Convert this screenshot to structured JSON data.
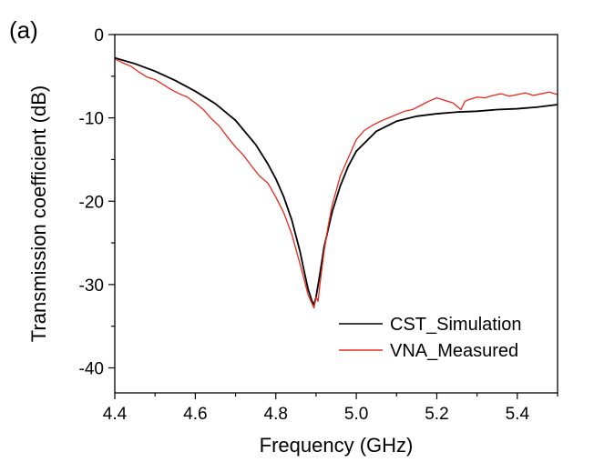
{
  "panel_label": "(a)",
  "chart_data": {
    "type": "line",
    "title": "",
    "xlabel": "Frequency (GHz)",
    "ylabel": "Transmission coefficient (dB)",
    "xlim": [
      4.4,
      5.5
    ],
    "ylim": [
      -43,
      0
    ],
    "xticks": [
      4.4,
      4.6,
      4.8,
      5.0,
      5.2,
      5.4
    ],
    "xtick_labels": [
      "4.4",
      "4.6",
      "4.8",
      "5.0",
      "5.2",
      "5.4"
    ],
    "yticks": [
      0,
      -10,
      -20,
      -30,
      -40
    ],
    "ytick_labels": [
      "0",
      "-10",
      "-20",
      "-30",
      "-40"
    ],
    "grid": false,
    "legend_position": "bottom-right",
    "series": [
      {
        "name": "CST_Simulation",
        "color": "#000000",
        "x": [
          4.4,
          4.45,
          4.5,
          4.55,
          4.6,
          4.65,
          4.7,
          4.75,
          4.78,
          4.8,
          4.82,
          4.84,
          4.86,
          4.87,
          4.88,
          4.89,
          4.895,
          4.9,
          4.91,
          4.92,
          4.94,
          4.96,
          4.98,
          5.0,
          5.05,
          5.1,
          5.15,
          5.2,
          5.25,
          5.3,
          5.35,
          5.4,
          5.45,
          5.5
        ],
        "y": [
          -2.8,
          -3.5,
          -4.4,
          -5.5,
          -6.8,
          -8.3,
          -10.3,
          -13.2,
          -15.5,
          -17.3,
          -19.5,
          -22.3,
          -26.0,
          -28.3,
          -30.5,
          -32.0,
          -32.4,
          -31.5,
          -28.6,
          -25.5,
          -21.3,
          -18.2,
          -15.8,
          -14.0,
          -11.6,
          -10.4,
          -9.8,
          -9.5,
          -9.3,
          -9.2,
          -9.0,
          -8.9,
          -8.7,
          -8.4
        ]
      },
      {
        "name": "VNA_Measured",
        "color": "#e8281e",
        "x": [
          4.4,
          4.42,
          4.44,
          4.46,
          4.48,
          4.5,
          4.52,
          4.54,
          4.56,
          4.58,
          4.6,
          4.62,
          4.64,
          4.66,
          4.68,
          4.7,
          4.72,
          4.74,
          4.76,
          4.78,
          4.8,
          4.82,
          4.84,
          4.86,
          4.87,
          4.88,
          4.89,
          4.895,
          4.9,
          4.905,
          4.91,
          4.92,
          4.93,
          4.94,
          4.96,
          4.98,
          5.0,
          5.02,
          5.04,
          5.06,
          5.08,
          5.1,
          5.12,
          5.14,
          5.16,
          5.18,
          5.2,
          5.22,
          5.24,
          5.26,
          5.27,
          5.28,
          5.3,
          5.32,
          5.34,
          5.36,
          5.38,
          5.4,
          5.42,
          5.44,
          5.46,
          5.48,
          5.5
        ],
        "y": [
          -2.9,
          -3.4,
          -3.8,
          -4.5,
          -5.1,
          -5.4,
          -6.0,
          -6.6,
          -7.1,
          -7.5,
          -8.2,
          -9.0,
          -10.1,
          -11.0,
          -12.3,
          -13.5,
          -14.5,
          -15.8,
          -17.0,
          -17.8,
          -19.5,
          -21.4,
          -24.0,
          -27.5,
          -29.3,
          -31.2,
          -32.3,
          -32.8,
          -31.5,
          -32.0,
          -29.8,
          -26.0,
          -23.0,
          -20.5,
          -17.0,
          -14.8,
          -12.6,
          -11.5,
          -10.9,
          -10.4,
          -10.0,
          -9.6,
          -9.2,
          -9.0,
          -8.5,
          -8.0,
          -7.6,
          -7.9,
          -8.2,
          -9.0,
          -8.0,
          -7.8,
          -7.5,
          -7.6,
          -7.3,
          -7.1,
          -7.4,
          -7.2,
          -7.0,
          -7.3,
          -7.1,
          -6.9,
          -7.2
        ]
      }
    ]
  }
}
